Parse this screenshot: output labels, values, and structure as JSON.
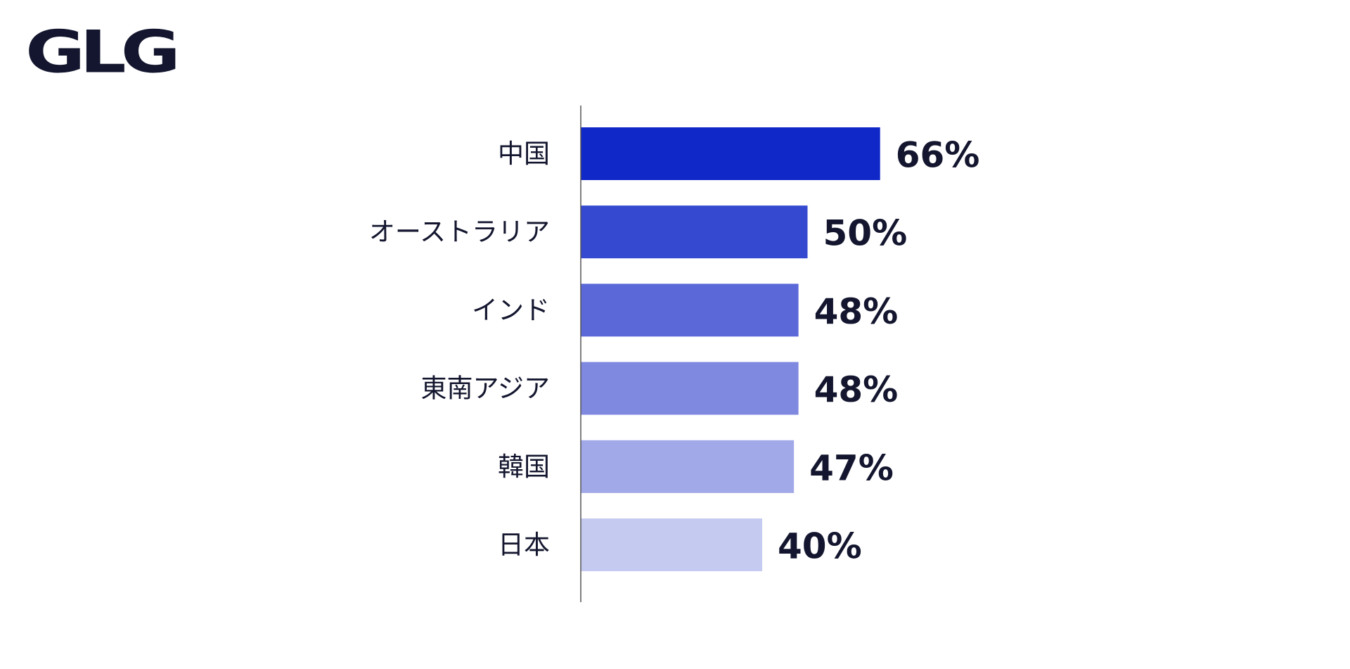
{
  "logo": {
    "text": "GLG"
  },
  "chart_data": {
    "type": "bar",
    "orientation": "horizontal",
    "categories": [
      "中国",
      "オーストラリア",
      "インド",
      "東南アジア",
      "韓国",
      "日本"
    ],
    "values": [
      66,
      50,
      48,
      48,
      47,
      40
    ],
    "value_labels": [
      "66%",
      "50%",
      "48%",
      "48%",
      "47%",
      "40%"
    ],
    "unit": "%",
    "title": "",
    "xlabel": "",
    "ylabel": "",
    "xlim": [
      0,
      100
    ],
    "grid": false,
    "legend": "none",
    "bar_colors": [
      "#1128c8",
      "#3449cf",
      "#5a68d8",
      "#7f89e0",
      "#a1a9e8",
      "#c5caf1"
    ],
    "axis_color": "#555555",
    "text_color": "#13162e"
  }
}
